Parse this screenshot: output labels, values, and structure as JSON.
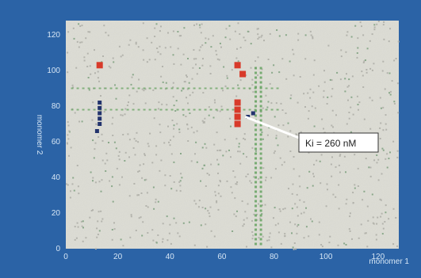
{
  "chart_data": {
    "type": "heatmap",
    "title": "",
    "xlabel": "monomer 1",
    "ylabel": "monomer 2",
    "xlim": [
      0,
      128
    ],
    "ylim": [
      0,
      128
    ],
    "x_ticks": [
      "0",
      "20",
      "40",
      "60",
      "80",
      "100",
      "120"
    ],
    "y_ticks": [
      "0",
      "20",
      "40",
      "60",
      "80",
      "100",
      "120"
    ],
    "grid": false,
    "colors": {
      "frame": "#2b63a6",
      "plot_background": "#dcdcd4",
      "high_binding": "#d83a2a",
      "medium_binding": "#5fa05a",
      "low_binding": "#22336d"
    },
    "highlight_points": [
      {
        "x": 66,
        "y": 82,
        "level": "high"
      },
      {
        "x": 66,
        "y": 78,
        "level": "high"
      },
      {
        "x": 66,
        "y": 74,
        "level": "high"
      },
      {
        "x": 66,
        "y": 70,
        "level": "high"
      },
      {
        "x": 66,
        "y": 103,
        "level": "high"
      },
      {
        "x": 68,
        "y": 98,
        "level": "high"
      },
      {
        "x": 13,
        "y": 103,
        "level": "high"
      },
      {
        "x": 70,
        "y": 74,
        "level": "low"
      },
      {
        "x": 72,
        "y": 76,
        "level": "low"
      },
      {
        "x": 13,
        "y": 82,
        "level": "low"
      },
      {
        "x": 13,
        "y": 79,
        "level": "low"
      },
      {
        "x": 13,
        "y": 76,
        "level": "low"
      },
      {
        "x": 13,
        "y": 73,
        "level": "low"
      },
      {
        "x": 13,
        "y": 70,
        "level": "low"
      },
      {
        "x": 12,
        "y": 66,
        "level": "low"
      }
    ],
    "medium_columns": [
      {
        "x": 73,
        "y_from": 2,
        "y_to": 102
      },
      {
        "x": 75,
        "y_from": 2,
        "y_to": 102
      }
    ],
    "medium_rows": [
      {
        "y": 90,
        "x_from": 2,
        "x_to": 82
      },
      {
        "y": 78,
        "x_from": 2,
        "x_to": 82
      }
    ],
    "annotations": [
      {
        "text": "Ki = 260 nM",
        "x": 69,
        "y": 74
      }
    ]
  }
}
